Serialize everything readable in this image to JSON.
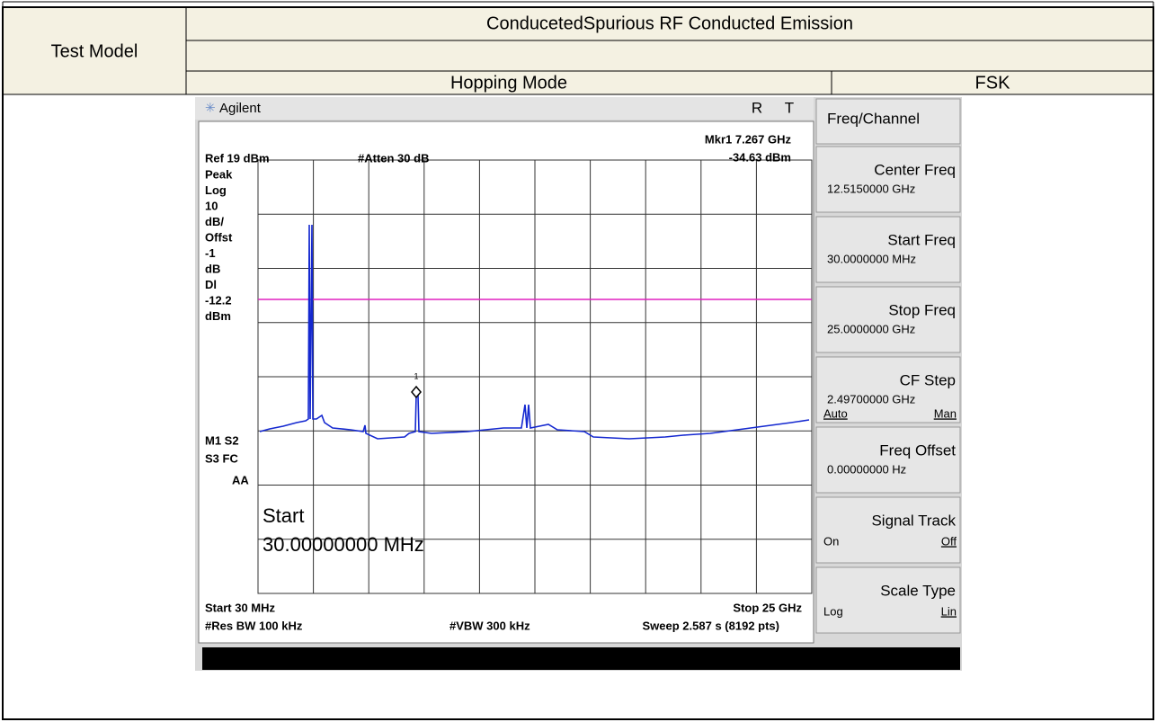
{
  "header": {
    "test_model": "Test Model",
    "title": "ConducetedSpurious RF Conducted Emission",
    "mode": "Hopping Mode",
    "modulation": "FSK"
  },
  "analyzer": {
    "brand": "Agilent",
    "status": [
      "R",
      "T"
    ],
    "marker": "Mkr1  7.267 GHz",
    "marker_level": "-34.63 dBm",
    "ref": "Ref 19 dBm",
    "atten": "#Atten 30 dB",
    "marker_number": "1",
    "left_labels": [
      "Peak",
      "Log",
      "10",
      "dB/",
      "Offst",
      "-1",
      "dB",
      "Dl",
      "-12.2",
      "dBm"
    ],
    "mode_labels": [
      "M1  S2",
      "S3  FC",
      "AA"
    ],
    "start_annotation": [
      "Start",
      "30.00000000 MHz"
    ],
    "start": "Start 30 MHz",
    "stop": "Stop 25 GHz",
    "rbw": "#Res BW 100 kHz",
    "vbw": "#VBW 300 kHz",
    "sweep": "Sweep 2.587 s (8192 pts)"
  },
  "softkeys": {
    "title": "Freq/Channel",
    "keys": [
      {
        "label": "Center Freq",
        "value": "12.5150000 GHz"
      },
      {
        "label": "Start Freq",
        "value": "30.0000000 MHz"
      },
      {
        "label": "Stop Freq",
        "value": "25.0000000 GHz"
      },
      {
        "label": "CF Step",
        "value": "2.49700000 GHz",
        "options": [
          "Auto",
          "Man"
        ]
      },
      {
        "label": "Freq Offset",
        "value": "0.00000000  Hz"
      },
      {
        "label": "Signal Track",
        "options": [
          "On",
          "Off"
        ]
      },
      {
        "label": "Scale Type",
        "options": [
          "Log",
          "Lin"
        ]
      }
    ]
  }
}
